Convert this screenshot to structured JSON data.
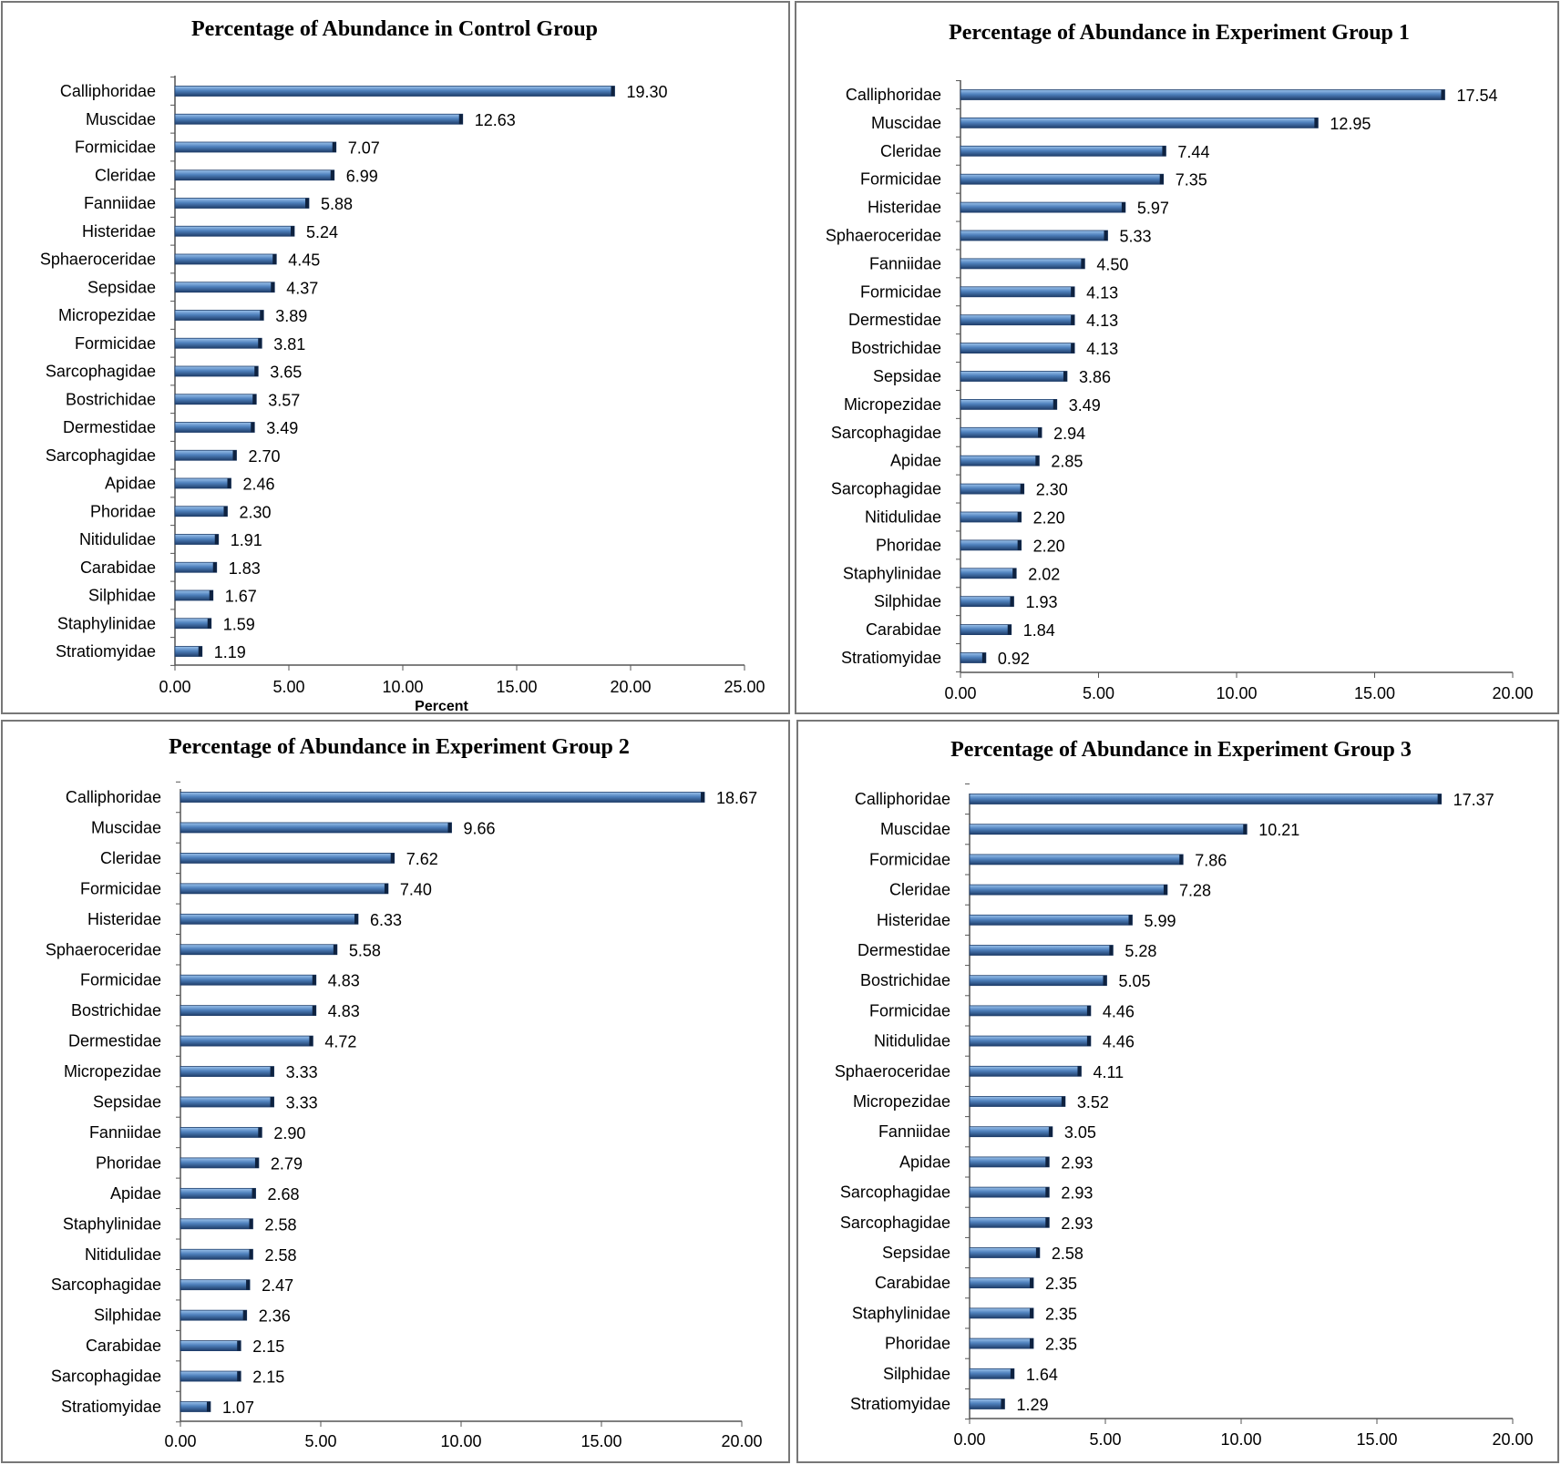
{
  "colors": {
    "bar_light": "#9cc3ec",
    "bar_mid": "#4f81bd",
    "bar_dark": "#1f3e6b",
    "bar_cap": "#0e2240",
    "axis": "#555555",
    "border": "#777777"
  },
  "chart_data": [
    {
      "type": "bar",
      "orientation": "horizontal",
      "title": "Percentage of Abundance in Control Group",
      "xlabel": "Percent",
      "xlim": [
        0,
        25
      ],
      "xticks": [
        "0.00",
        "5.00",
        "10.00",
        "15.00",
        "20.00",
        "25.00"
      ],
      "categories": [
        "Calliphoridae",
        "Muscidae",
        "Formicidae",
        "Cleridae",
        "Fanniidae",
        "Histeridae",
        "Sphaeroceridae",
        "Sepsidae",
        "Micropezidae",
        "Formicidae",
        "Sarcophagidae",
        "Bostrichidae",
        "Dermestidae",
        "Sarcophagidae",
        "Apidae",
        "Phoridae",
        "Nitidulidae",
        "Carabidae",
        "Silphidae",
        "Staphylinidae",
        "Stratiomyidae"
      ],
      "values": [
        19.3,
        12.63,
        7.07,
        6.99,
        5.88,
        5.24,
        4.45,
        4.37,
        3.89,
        3.81,
        3.65,
        3.57,
        3.49,
        2.7,
        2.46,
        2.3,
        1.91,
        1.83,
        1.67,
        1.59,
        1.19
      ],
      "labels": [
        "19.30",
        "12.63",
        "7.07",
        "6.99",
        "5.88",
        "5.24",
        "4.45",
        "4.37",
        "3.89",
        "3.81",
        "3.65",
        "3.57",
        "3.49",
        "2.70",
        "2.46",
        "2.30",
        "1.91",
        "1.83",
        "1.67",
        "1.59",
        "1.19"
      ]
    },
    {
      "type": "bar",
      "orientation": "horizontal",
      "title": "Percentage of Abundance in Experiment Group 1",
      "xlabel": "",
      "xlim": [
        0,
        20
      ],
      "xticks": [
        "0.00",
        "5.00",
        "10.00",
        "15.00",
        "20.00"
      ],
      "categories": [
        "Calliphoridae",
        "Muscidae",
        "Cleridae",
        "Formicidae",
        "Histeridae",
        "Sphaeroceridae",
        "Fanniidae",
        "Formicidae",
        "Dermestidae",
        "Bostrichidae",
        "Sepsidae",
        "Micropezidae",
        "Sarcophagidae",
        "Apidae",
        "Sarcophagidae",
        "Nitidulidae",
        "Phoridae",
        "Staphylinidae",
        "Silphidae",
        "Carabidae",
        "Stratiomyidae"
      ],
      "values": [
        17.54,
        12.95,
        7.44,
        7.35,
        5.97,
        5.33,
        4.5,
        4.13,
        4.13,
        4.13,
        3.86,
        3.49,
        2.94,
        2.85,
        2.3,
        2.2,
        2.2,
        2.02,
        1.93,
        1.84,
        0.92
      ],
      "labels": [
        "17.54",
        "12.95",
        "7.44",
        "7.35",
        "5.97",
        "5.33",
        "4.50",
        "4.13",
        "4.13",
        "4.13",
        "3.86",
        "3.49",
        "2.94",
        "2.85",
        "2.30",
        "2.20",
        "2.20",
        "2.02",
        "1.93",
        "1.84",
        "0.92"
      ]
    },
    {
      "type": "bar",
      "orientation": "horizontal",
      "title": "Percentage of Abundance in Experiment Group 2",
      "xlabel": "",
      "xlim": [
        0,
        20
      ],
      "xticks": [
        "0.00",
        "5.00",
        "10.00",
        "15.00",
        "20.00"
      ],
      "categories": [
        "Calliphoridae",
        "Muscidae",
        "Cleridae",
        "Formicidae",
        "Histeridae",
        "Sphaeroceridae",
        "Formicidae",
        "Bostrichidae",
        "Dermestidae",
        "Micropezidae",
        "Sepsidae",
        "Fanniidae",
        "Phoridae",
        "Apidae",
        "Staphylinidae",
        "Nitidulidae",
        "Sarcophagidae",
        "Silphidae",
        "Carabidae",
        "Sarcophagidae",
        "Stratiomyidae"
      ],
      "values": [
        18.67,
        9.66,
        7.62,
        7.4,
        6.33,
        5.58,
        4.83,
        4.83,
        4.72,
        3.33,
        3.33,
        2.9,
        2.79,
        2.68,
        2.58,
        2.58,
        2.47,
        2.36,
        2.15,
        2.15,
        1.07
      ],
      "labels": [
        "18.67",
        "9.66",
        "7.62",
        "7.40",
        "6.33",
        "5.58",
        "4.83",
        "4.83",
        "4.72",
        "3.33",
        "3.33",
        "2.90",
        "2.79",
        "2.68",
        "2.58",
        "2.58",
        "2.47",
        "2.36",
        "2.15",
        "2.15",
        "1.07"
      ]
    },
    {
      "type": "bar",
      "orientation": "horizontal",
      "title": "Percentage of Abundance in Experiment Group 3",
      "xlabel": "",
      "xlim": [
        0,
        20
      ],
      "xticks": [
        "0.00",
        "5.00",
        "10.00",
        "15.00",
        "20.00"
      ],
      "categories": [
        "Calliphoridae",
        "Muscidae",
        "Formicidae",
        "Cleridae",
        "Histeridae",
        "Dermestidae",
        "Bostrichidae",
        "Formicidae",
        "Nitidulidae",
        "Sphaeroceridae",
        "Micropezidae",
        "Fanniidae",
        "Apidae",
        "Sarcophagidae",
        "Sarcophagidae",
        "Sepsidae",
        "Carabidae",
        "Staphylinidae",
        "Phoridae",
        "Silphidae",
        "Stratiomyidae"
      ],
      "values": [
        17.37,
        10.21,
        7.86,
        7.28,
        5.99,
        5.28,
        5.05,
        4.46,
        4.46,
        4.11,
        3.52,
        3.05,
        2.93,
        2.93,
        2.93,
        2.58,
        2.35,
        2.35,
        2.35,
        1.64,
        1.29
      ],
      "labels": [
        "17.37",
        "10.21",
        "7.86",
        "7.28",
        "5.99",
        "5.28",
        "5.05",
        "4.46",
        "4.46",
        "4.11",
        "3.52",
        "3.05",
        "2.93",
        "2.93",
        "2.93",
        "2.58",
        "2.35",
        "2.35",
        "2.35",
        "1.64",
        "1.29"
      ]
    }
  ]
}
